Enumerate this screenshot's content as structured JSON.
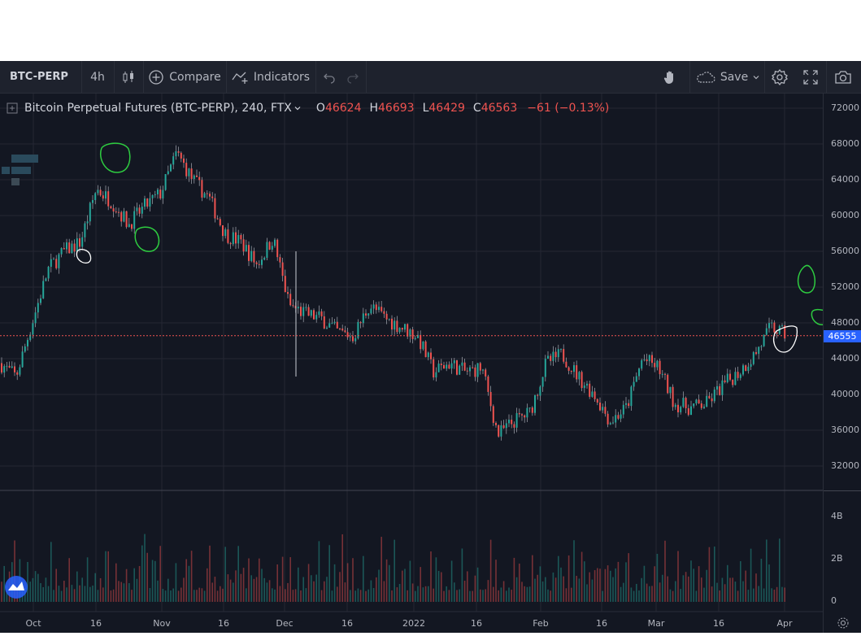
{
  "toolbar": {
    "symbol": "BTC-PERP",
    "interval": "4h",
    "compare_label": "Compare",
    "indicators_label": "Indicators",
    "save_label": "Save"
  },
  "legend": {
    "title": "Bitcoin Perpetual Futures (BTC-PERP), 240, FTX",
    "o_key": "O",
    "o_val": "46624",
    "h_key": "H",
    "h_val": "46693",
    "l_key": "L",
    "l_val": "46429",
    "c_key": "C",
    "c_val": "46563",
    "change": "−61 (−0.13%)"
  },
  "price_axis": {
    "ticks": [
      "72000",
      "68000",
      "64000",
      "60000",
      "56000",
      "52000",
      "48000",
      "44000",
      "40000",
      "36000",
      "32000"
    ],
    "last_price": "46563",
    "bid_price": "46555",
    "last_color": "#ef5350",
    "bid_color": "#2962ff"
  },
  "volume_axis": {
    "ticks": [
      "4B",
      "2B",
      "0"
    ]
  },
  "time_axis": {
    "ticks": [
      "Oct",
      "16",
      "Nov",
      "16",
      "Dec",
      "16",
      "2022",
      "16",
      "Feb",
      "16",
      "Mar",
      "16",
      "Apr"
    ]
  },
  "colors": {
    "up": "#26a69a",
    "down": "#ef5350",
    "background": "#131722",
    "annotation_green": "#2ecc40",
    "annotation_white": "#ffffff"
  },
  "chart_data": {
    "type": "candlestick",
    "ylim": [
      30000,
      74000
    ],
    "x": [
      "Sep 26",
      "Oct 1",
      "Oct 4",
      "Oct 8",
      "Oct 12",
      "Oct 16",
      "Oct 20",
      "Oct 24",
      "Oct 28",
      "Nov 1",
      "Nov 5",
      "Nov 9",
      "Nov 13",
      "Nov 16",
      "Nov 20",
      "Nov 24",
      "Nov 28",
      "Dec 1",
      "Dec 4",
      "Dec 8",
      "Dec 12",
      "Dec 16",
      "Dec 20",
      "Dec 24",
      "Dec 28",
      "Jan 1",
      "Jan 5",
      "Jan 8",
      "Jan 12",
      "Jan 16",
      "Jan 20",
      "Jan 24",
      "Jan 28",
      "Feb 1",
      "Feb 5",
      "Feb 9",
      "Feb 13",
      "Feb 17",
      "Feb 21",
      "Feb 24",
      "Feb 28",
      "Mar 2",
      "Mar 6",
      "Mar 10",
      "Mar 14",
      "Mar 18",
      "Mar 22",
      "Mar 26",
      "Mar 29",
      "Apr 1"
    ],
    "close": [
      43500,
      42000,
      48000,
      54000,
      56000,
      57000,
      63000,
      61500,
      59000,
      61000,
      62500,
      67000,
      64000,
      62000,
      58000,
      57000,
      54500,
      57500,
      50000,
      49000,
      48500,
      47000,
      46500,
      50000,
      48500,
      47500,
      46500,
      42500,
      43500,
      42500,
      43000,
      35500,
      37000,
      38000,
      43500,
      44500,
      42000,
      40000,
      37000,
      38500,
      44000,
      43000,
      39000,
      38500,
      39000,
      41000,
      42500,
      44500,
      47500,
      46563
    ],
    "volume_ylim": [
      0,
      5000000000
    ],
    "volume_ticks": [
      0,
      2000000000,
      4000000000
    ]
  }
}
